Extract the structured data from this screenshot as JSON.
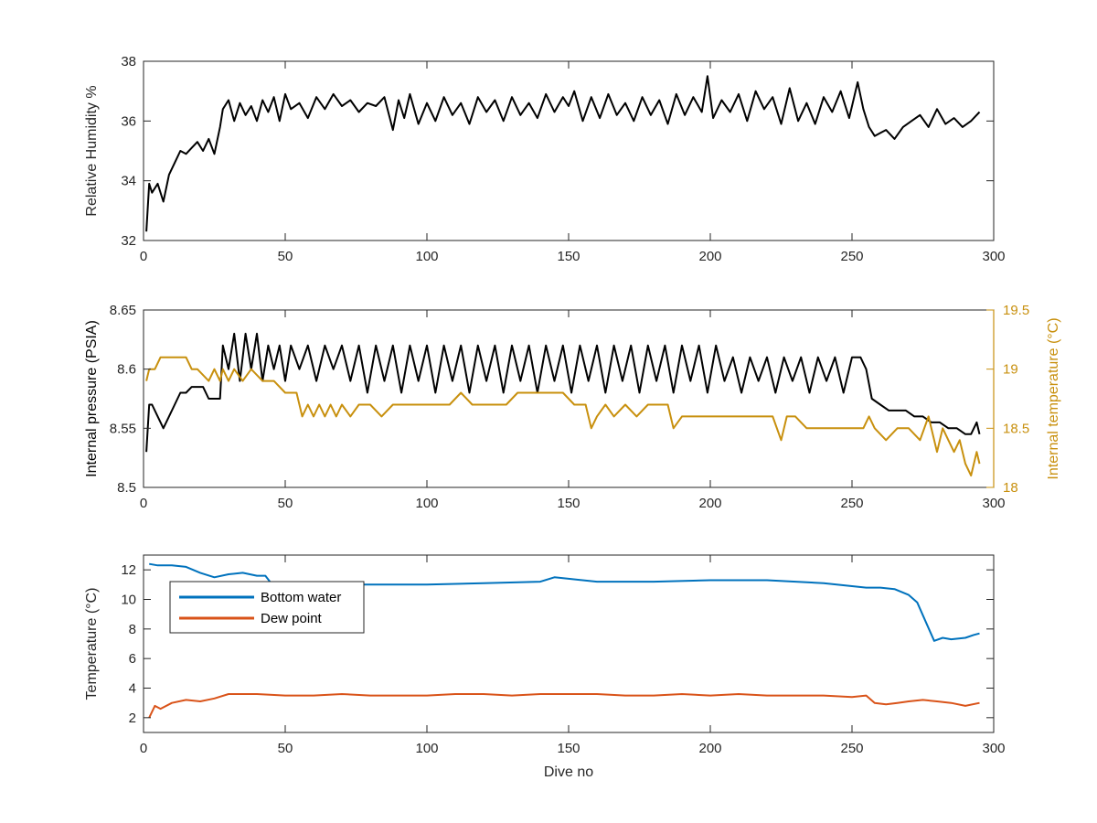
{
  "figure": {
    "xlabel": "Dive no"
  },
  "chart_data": [
    {
      "type": "line",
      "title": "",
      "xlabel": "",
      "ylabel": "Relative Humidity %",
      "xlim": [
        0,
        300
      ],
      "ylim": [
        32,
        38
      ],
      "xticks": [
        0,
        50,
        100,
        150,
        200,
        250,
        300
      ],
      "yticks": [
        32,
        34,
        36,
        38
      ],
      "grid": false,
      "series": [
        {
          "color": "#000000",
          "x": [
            1,
            2,
            3,
            5,
            7,
            9,
            11,
            13,
            15,
            17,
            19,
            21,
            23,
            25,
            27,
            28,
            30,
            32,
            34,
            36,
            38,
            40,
            42,
            44,
            46,
            48,
            50,
            52,
            55,
            58,
            61,
            64,
            67,
            70,
            73,
            76,
            79,
            82,
            85,
            88,
            90,
            92,
            94,
            97,
            100,
            103,
            106,
            109,
            112,
            115,
            118,
            121,
            124,
            127,
            130,
            133,
            136,
            139,
            142,
            145,
            148,
            150,
            152,
            155,
            158,
            161,
            164,
            167,
            170,
            173,
            176,
            179,
            182,
            185,
            188,
            191,
            194,
            197,
            199,
            201,
            204,
            207,
            210,
            213,
            216,
            219,
            222,
            225,
            228,
            231,
            234,
            237,
            240,
            243,
            246,
            249,
            252,
            254,
            256,
            258,
            260,
            262,
            265,
            268,
            271,
            274,
            277,
            280,
            283,
            286,
            289,
            292,
            295
          ],
          "values": [
            32.3,
            33.9,
            33.6,
            33.9,
            33.3,
            34.2,
            34.6,
            35.0,
            34.9,
            35.1,
            35.3,
            35.0,
            35.4,
            34.9,
            35.8,
            36.4,
            36.7,
            36.0,
            36.6,
            36.2,
            36.5,
            36.0,
            36.7,
            36.3,
            36.8,
            36.0,
            36.9,
            36.4,
            36.6,
            36.1,
            36.8,
            36.4,
            36.9,
            36.5,
            36.7,
            36.3,
            36.6,
            36.5,
            36.8,
            35.7,
            36.7,
            36.1,
            36.9,
            35.9,
            36.6,
            36.0,
            36.8,
            36.2,
            36.6,
            35.9,
            36.8,
            36.3,
            36.7,
            36.0,
            36.8,
            36.2,
            36.6,
            36.1,
            36.9,
            36.3,
            36.8,
            36.5,
            37.0,
            36.0,
            36.8,
            36.1,
            36.9,
            36.2,
            36.6,
            36.0,
            36.8,
            36.2,
            36.7,
            35.9,
            36.9,
            36.2,
            36.8,
            36.3,
            37.5,
            36.1,
            36.7,
            36.3,
            36.9,
            36.0,
            37.0,
            36.4,
            36.8,
            35.9,
            37.1,
            36.0,
            36.6,
            35.9,
            36.8,
            36.3,
            37.0,
            36.1,
            37.3,
            36.4,
            35.8,
            35.5,
            35.6,
            35.7,
            35.4,
            35.8,
            36.0,
            36.2,
            35.8,
            36.4,
            35.9,
            36.1,
            35.8,
            36.0,
            36.3
          ]
        }
      ]
    },
    {
      "type": "line",
      "title": "",
      "xlabel": "",
      "ylabel": "Internal pressure (PSIA)",
      "ylabel_right": "Internal temperature (°C)",
      "xlim": [
        0,
        300
      ],
      "ylim": [
        8.5,
        8.65
      ],
      "ylim_right": [
        18,
        19.5
      ],
      "xticks": [
        0,
        50,
        100,
        150,
        200,
        250,
        300
      ],
      "yticks": [
        "8.5",
        "8.55",
        "8.6",
        "8.65"
      ],
      "yticks_right": [
        "18",
        "18.5",
        "19",
        "19.5"
      ],
      "grid": false,
      "series": [
        {
          "axis": "left",
          "color": "#000000",
          "x": [
            1,
            2,
            3,
            5,
            7,
            9,
            11,
            13,
            15,
            17,
            19,
            21,
            23,
            25,
            27,
            28,
            30,
            32,
            34,
            36,
            38,
            40,
            42,
            44,
            46,
            48,
            50,
            52,
            55,
            58,
            61,
            64,
            67,
            70,
            73,
            76,
            79,
            82,
            85,
            88,
            91,
            94,
            97,
            100,
            103,
            106,
            109,
            112,
            115,
            118,
            121,
            124,
            127,
            130,
            133,
            136,
            139,
            142,
            145,
            148,
            151,
            154,
            157,
            160,
            163,
            166,
            169,
            172,
            175,
            178,
            181,
            184,
            187,
            190,
            193,
            196,
            199,
            202,
            205,
            208,
            211,
            214,
            217,
            220,
            223,
            226,
            229,
            232,
            235,
            238,
            241,
            244,
            247,
            250,
            253,
            255,
            257,
            260,
            263,
            266,
            269,
            272,
            275,
            278,
            281,
            284,
            287,
            290,
            292,
            294,
            295
          ],
          "values": [
            8.53,
            8.57,
            8.57,
            8.56,
            8.55,
            8.56,
            8.57,
            8.58,
            8.58,
            8.585,
            8.585,
            8.585,
            8.575,
            8.575,
            8.575,
            8.62,
            8.6,
            8.63,
            8.59,
            8.63,
            8.6,
            8.63,
            8.59,
            8.62,
            8.6,
            8.62,
            8.59,
            8.62,
            8.6,
            8.62,
            8.59,
            8.62,
            8.6,
            8.62,
            8.59,
            8.62,
            8.58,
            8.62,
            8.59,
            8.62,
            8.58,
            8.62,
            8.59,
            8.62,
            8.58,
            8.62,
            8.59,
            8.62,
            8.58,
            8.62,
            8.59,
            8.62,
            8.58,
            8.62,
            8.59,
            8.62,
            8.58,
            8.62,
            8.59,
            8.62,
            8.58,
            8.62,
            8.59,
            8.62,
            8.58,
            8.62,
            8.59,
            8.62,
            8.58,
            8.62,
            8.59,
            8.62,
            8.58,
            8.62,
            8.59,
            8.62,
            8.58,
            8.62,
            8.59,
            8.61,
            8.58,
            8.61,
            8.59,
            8.61,
            8.58,
            8.61,
            8.59,
            8.61,
            8.58,
            8.61,
            8.59,
            8.61,
            8.58,
            8.61,
            8.61,
            8.6,
            8.575,
            8.57,
            8.565,
            8.565,
            8.565,
            8.56,
            8.56,
            8.555,
            8.555,
            8.55,
            8.55,
            8.545,
            8.545,
            8.555,
            8.545
          ]
        },
        {
          "axis": "right",
          "color": "#C8900E",
          "x": [
            1,
            2,
            4,
            6,
            10,
            15,
            17,
            19,
            23,
            25,
            27,
            28,
            30,
            32,
            35,
            38,
            42,
            46,
            50,
            54,
            56,
            58,
            60,
            62,
            64,
            66,
            68,
            70,
            73,
            76,
            80,
            84,
            88,
            92,
            96,
            100,
            104,
            108,
            112,
            116,
            120,
            124,
            128,
            132,
            136,
            140,
            144,
            148,
            152,
            156,
            158,
            160,
            163,
            166,
            170,
            174,
            178,
            182,
            185,
            187,
            190,
            194,
            198,
            202,
            206,
            210,
            214,
            218,
            222,
            225,
            227,
            230,
            234,
            238,
            242,
            246,
            250,
            254,
            256,
            258,
            262,
            266,
            270,
            274,
            277,
            280,
            282,
            284,
            286,
            288,
            290,
            292,
            294,
            295
          ],
          "values": [
            18.9,
            19.0,
            19.0,
            19.1,
            19.1,
            19.1,
            19.0,
            19.0,
            18.9,
            19.0,
            18.9,
            19.0,
            18.9,
            19.0,
            18.9,
            19.0,
            18.9,
            18.9,
            18.8,
            18.8,
            18.6,
            18.7,
            18.6,
            18.7,
            18.6,
            18.7,
            18.6,
            18.7,
            18.6,
            18.7,
            18.7,
            18.6,
            18.7,
            18.7,
            18.7,
            18.7,
            18.7,
            18.7,
            18.8,
            18.7,
            18.7,
            18.7,
            18.7,
            18.8,
            18.8,
            18.8,
            18.8,
            18.8,
            18.7,
            18.7,
            18.5,
            18.6,
            18.7,
            18.6,
            18.7,
            18.6,
            18.7,
            18.7,
            18.7,
            18.5,
            18.6,
            18.6,
            18.6,
            18.6,
            18.6,
            18.6,
            18.6,
            18.6,
            18.6,
            18.4,
            18.6,
            18.6,
            18.5,
            18.5,
            18.5,
            18.5,
            18.5,
            18.5,
            18.6,
            18.5,
            18.4,
            18.5,
            18.5,
            18.4,
            18.6,
            18.3,
            18.5,
            18.4,
            18.3,
            18.4,
            18.2,
            18.1,
            18.3,
            18.2
          ]
        }
      ]
    },
    {
      "type": "line",
      "title": "",
      "xlabel": "Dive no",
      "ylabel": "Temperature (°C)",
      "xlim": [
        0,
        300
      ],
      "ylim": [
        1,
        13
      ],
      "xticks": [
        0,
        50,
        100,
        150,
        200,
        250,
        300
      ],
      "yticks": [
        2,
        4,
        6,
        8,
        10,
        12
      ],
      "grid": false,
      "legend": "top-left",
      "series": [
        {
          "name": "Bottom water",
          "color": "#0072BD",
          "x": [
            2,
            5,
            10,
            15,
            20,
            25,
            30,
            35,
            40,
            43,
            45,
            50,
            60,
            80,
            100,
            120,
            140,
            145,
            150,
            160,
            180,
            200,
            220,
            240,
            250,
            255,
            260,
            265,
            270,
            273,
            276,
            279,
            282,
            285,
            290,
            293,
            295
          ],
          "values": [
            12.4,
            12.3,
            12.3,
            12.2,
            11.8,
            11.5,
            11.7,
            11.8,
            11.6,
            11.6,
            11.1,
            11.1,
            11.0,
            11.0,
            11.0,
            11.1,
            11.2,
            11.5,
            11.4,
            11.2,
            11.2,
            11.3,
            11.3,
            11.1,
            10.9,
            10.8,
            10.8,
            10.7,
            10.3,
            9.8,
            8.5,
            7.2,
            7.4,
            7.3,
            7.4,
            7.6,
            7.7
          ]
        },
        {
          "name": "Dew point",
          "color": "#D95319",
          "x": [
            2,
            4,
            6,
            10,
            15,
            20,
            25,
            30,
            40,
            50,
            60,
            70,
            80,
            90,
            100,
            110,
            120,
            130,
            140,
            150,
            160,
            170,
            180,
            190,
            200,
            210,
            220,
            230,
            240,
            250,
            255,
            258,
            262,
            266,
            270,
            275,
            280,
            285,
            290,
            295
          ],
          "values": [
            2.0,
            2.8,
            2.6,
            3.0,
            3.2,
            3.1,
            3.3,
            3.6,
            3.6,
            3.5,
            3.5,
            3.6,
            3.5,
            3.5,
            3.5,
            3.6,
            3.6,
            3.5,
            3.6,
            3.6,
            3.6,
            3.5,
            3.5,
            3.6,
            3.5,
            3.6,
            3.5,
            3.5,
            3.5,
            3.4,
            3.5,
            3.0,
            2.9,
            3.0,
            3.1,
            3.2,
            3.1,
            3.0,
            2.8,
            3.0
          ]
        }
      ]
    }
  ]
}
